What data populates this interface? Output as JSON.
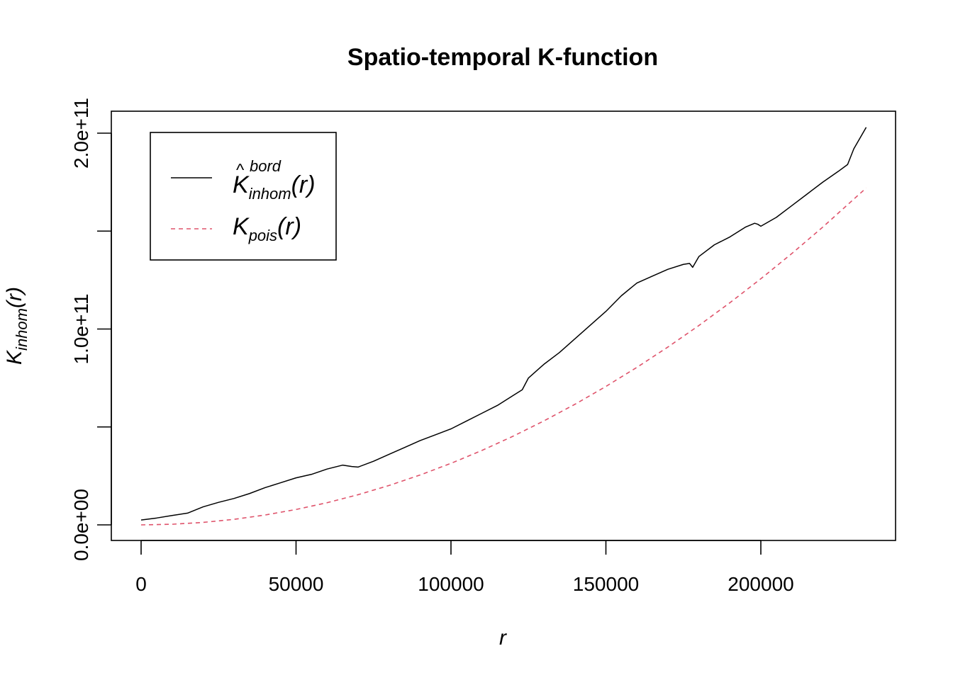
{
  "chart_data": {
    "type": "line",
    "title": "Spatio-temporal K-function",
    "xlabel": "r",
    "ylabel": {
      "base": "K",
      "subscript": "inhom",
      "argument": "(r)"
    },
    "xlim": [
      0,
      234000
    ],
    "ylim": [
      0,
      200000000000
    ],
    "x_ticks": [
      0,
      50000,
      100000,
      150000,
      200000
    ],
    "x_tick_labels": [
      "0",
      "50000",
      "100000",
      "150000",
      "200000"
    ],
    "y_ticks": [
      0,
      50000000000,
      100000000000,
      150000000000,
      200000000000
    ],
    "y_tick_labels": [
      "0.0e+00",
      "",
      "1.0e+11",
      "",
      "2.0e+11"
    ],
    "grid": false,
    "legend_position": "top-left",
    "series": [
      {
        "name": "K̂ inhom bord (r)",
        "legend": {
          "base": "K",
          "hat": true,
          "subscript": "inhom",
          "superscript": "bord",
          "argument": "(r)"
        },
        "color": "#000000",
        "dash": "solid",
        "x": [
          0,
          5000,
          10000,
          15000,
          20000,
          25000,
          30000,
          35000,
          40000,
          45000,
          50000,
          55000,
          60000,
          65000,
          68000,
          70000,
          75000,
          80000,
          85000,
          90000,
          95000,
          100000,
          105000,
          110000,
          115000,
          120000,
          123000,
          125000,
          130000,
          135000,
          140000,
          145000,
          150000,
          155000,
          160000,
          165000,
          170000,
          175000,
          177000,
          178000,
          180000,
          185000,
          190000,
          195000,
          198000,
          199000,
          200000,
          205000,
          210000,
          215000,
          220000,
          225000,
          228000,
          230000,
          234000
        ],
        "values": [
          2500000000,
          3500000000,
          4800000000,
          6000000000,
          9200000000,
          11500000000,
          13500000000,
          16000000000,
          19000000000,
          21500000000,
          24000000000,
          25800000000,
          28500000000,
          30500000000,
          29800000000,
          29500000000,
          32500000000,
          36000000000,
          39500000000,
          43000000000,
          46000000000,
          49000000000,
          53000000000,
          57000000000,
          61000000000,
          66000000000,
          69000000000,
          75000000000,
          82000000000,
          88000000000,
          95000000000,
          102000000000,
          109000000000,
          117000000000,
          123500000000,
          127000000000,
          130500000000,
          133000000000,
          133500000000,
          131500000000,
          137000000000,
          143000000000,
          147000000000,
          152000000000,
          154000000000,
          153500000000,
          152500000000,
          157000000000,
          163000000000,
          169000000000,
          175000000000,
          180500000000,
          184000000000,
          192000000000,
          203000000000
        ]
      },
      {
        "name": "K pois (r)",
        "legend": {
          "base": "K",
          "subscript": "pois",
          "argument": "(r)"
        },
        "color": "#DF536B",
        "dash": "dashed",
        "x": [
          0,
          10000,
          20000,
          30000,
          40000,
          50000,
          60000,
          70000,
          80000,
          90000,
          100000,
          110000,
          120000,
          130000,
          140000,
          150000,
          160000,
          170000,
          180000,
          190000,
          200000,
          210000,
          220000,
          234000
        ],
        "values": [
          0,
          314000000,
          1257000000,
          2827000000,
          5027000000,
          7854000000,
          11310000000,
          15394000000,
          20106000000,
          25447000000,
          31416000000,
          38013000000,
          45239000000,
          53093000000,
          61575000000,
          70686000000,
          80425000000,
          90792000000,
          101788000000,
          113411000000,
          125664000000,
          138544000000,
          152053000000,
          172021000000
        ]
      }
    ]
  }
}
